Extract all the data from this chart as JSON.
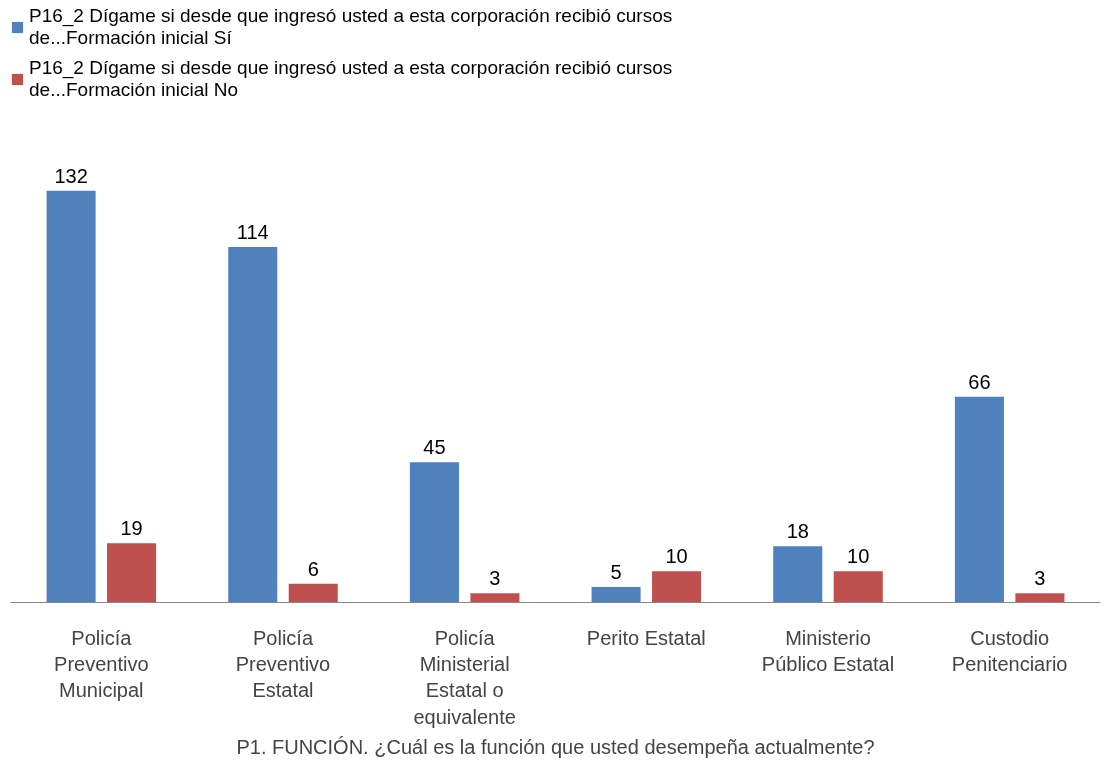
{
  "chart_data": {
    "type": "bar",
    "xlabel": "P1. FUNCIÓN. ¿Cuál es la función que usted desempeña actualmente?",
    "categories": [
      "Policía Preventivo Municipal",
      "Policía Preventivo Estatal",
      "Policía Ministerial Estatal o equivalente",
      "Perito Estatal",
      "Ministerio Público Estatal",
      "Custodio Penitenciario"
    ],
    "series": [
      {
        "name": "P16_2 Dígame si desde que ingresó usted a esta corporación recibió cursos de...Formación inicial Sí",
        "color": "#4f81bd",
        "values": [
          132,
          114,
          45,
          5,
          18,
          66
        ]
      },
      {
        "name": "P16_2 Dígame si desde que ingresó usted a esta corporación recibió cursos de...Formación inicial No",
        "color": "#c0504d",
        "values": [
          19,
          6,
          3,
          10,
          10,
          3
        ]
      }
    ],
    "data_labels": true,
    "legend": "top"
  }
}
